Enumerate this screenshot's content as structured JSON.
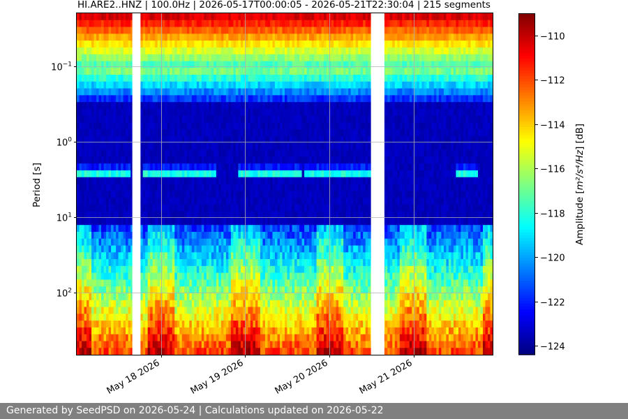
{
  "chart_data": {
    "type": "heatmap",
    "title": "HI.ARE2..HNZ | 100.0Hz | 2026-05-17T00:00:05 - 2026-05-21T22:30:04 | 215 segments",
    "xlabel": "",
    "ylabel": "Period [s]",
    "x_range": [
      "2026-05-17T00:00:05",
      "2026-05-21T22:30:04"
    ],
    "x_ticks": [
      {
        "date": "2026-05-18",
        "label": "May 18 2026"
      },
      {
        "date": "2026-05-19",
        "label": "May 19 2026"
      },
      {
        "date": "2026-05-20",
        "label": "May 20 2026"
      },
      {
        "date": "2026-05-21",
        "label": "May 21 2026"
      }
    ],
    "y_scale": "log",
    "y_inverted": true,
    "y_range": [
      0.02,
      670
    ],
    "y_ticks": [
      {
        "value": 0.1,
        "base": "10",
        "exp": "−1"
      },
      {
        "value": 1,
        "base": "10",
        "exp": "0"
      },
      {
        "value": 10,
        "base": "10",
        "exp": "1"
      },
      {
        "value": 100,
        "base": "10",
        "exp": "2"
      }
    ],
    "grid": true,
    "colormap": "jet",
    "colorbar": {
      "label_prefix": "Amplitude [",
      "label_unit": "m²/s⁴/Hz",
      "label_suffix": "] [dB]",
      "range": [
        -124.4,
        -109.0
      ],
      "ticks": [
        {
          "value": -110,
          "label": "−110"
        },
        {
          "value": -112,
          "label": "−112"
        },
        {
          "value": -114,
          "label": "−114"
        },
        {
          "value": -116,
          "label": "−116"
        },
        {
          "value": -118,
          "label": "−118"
        },
        {
          "value": -120,
          "label": "−120"
        },
        {
          "value": -122,
          "label": "−122"
        },
        {
          "value": -124,
          "label": "−124"
        }
      ]
    },
    "gaps": [
      {
        "start": "2026-05-17T15:50:00",
        "end": "2026-05-17T18:10:00"
      },
      {
        "start": "2026-05-20T11:50:00",
        "end": "2026-05-20T15:40:00"
      }
    ],
    "active_periods_hours": [
      [
        0,
        15.5
      ],
      [
        19,
        40
      ],
      [
        46,
        64
      ],
      [
        65,
        85
      ],
      [
        108,
        114
      ]
    ],
    "microseism_band_dB": -117.5,
    "long_period_max_dB": -109.0,
    "short_period_median_dB": -124.0
  },
  "footer": {
    "text": "Generated by SeedPSD on 2026-05-24 | Calculations updated on 2026-05-22"
  }
}
